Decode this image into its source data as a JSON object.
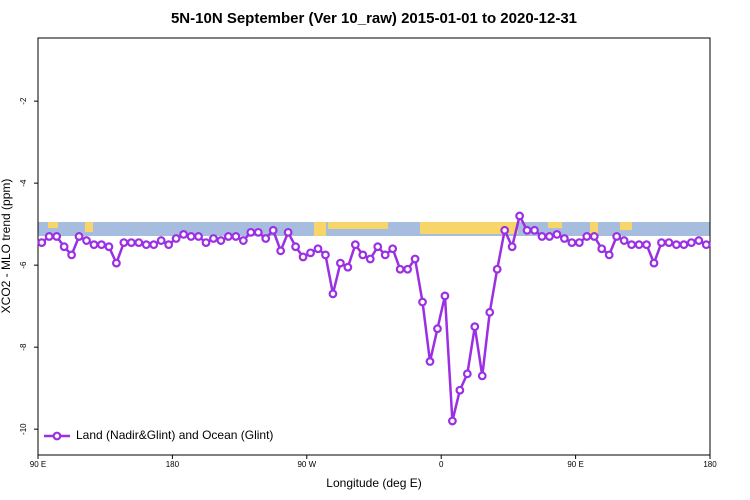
{
  "chart_data": {
    "type": "line",
    "title": "5N-10N September (Ver 10_raw)   2015-01-01 to 2020-12-31",
    "x_label": "Longitude (deg E)",
    "y_label": "XCO2 - MLO trend (ppm)",
    "x": [
      92.5,
      97.5,
      102.5,
      107.5,
      112.5,
      117.5,
      122.5,
      127.5,
      132.5,
      137.5,
      142.5,
      147.5,
      152.5,
      157.5,
      162.5,
      167.5,
      172.5,
      177.5,
      182.5,
      187.5,
      192.5,
      197.5,
      202.5,
      207.5,
      212.5,
      217.5,
      222.5,
      227.5,
      232.5,
      237.5,
      242.5,
      247.5,
      252.5,
      257.5,
      262.5,
      267.5,
      272.5,
      277.5,
      282.5,
      287.5,
      292.5,
      297.5,
      302.5,
      307.5,
      312.5,
      317.5,
      322.5,
      327.5,
      332.5,
      337.5,
      342.5,
      347.5,
      352.5,
      357.5,
      362.5,
      367.5,
      372.5,
      377.5,
      382.5,
      387.5,
      392.5,
      397.5,
      402.5,
      407.5,
      412.5,
      417.5,
      422.5,
      427.5,
      432.5,
      437.5,
      442.5,
      447.5,
      452.5,
      457.5,
      462.5,
      467.5,
      472.5,
      477.5,
      482.5,
      487.5,
      492.5,
      497.5,
      502.5,
      507.5,
      512.5,
      517.5,
      522.5,
      527.5,
      532.5,
      537.5
    ],
    "series": [
      {
        "name": "Land (Nadir&Glint) and Ocean (Glint)",
        "color": "#9b2fe3",
        "values": [
          -5.45,
          -5.3,
          -5.3,
          -5.55,
          -5.75,
          -5.3,
          -5.4,
          -5.5,
          -5.5,
          -5.55,
          -5.95,
          -5.45,
          -5.45,
          -5.45,
          -5.5,
          -5.5,
          -5.4,
          -5.5,
          -5.35,
          -5.25,
          -5.3,
          -5.3,
          -5.45,
          -5.35,
          -5.4,
          -5.3,
          -5.3,
          -5.4,
          -5.2,
          -5.2,
          -5.35,
          -5.15,
          -5.65,
          -5.2,
          -5.55,
          -5.8,
          -5.7,
          -5.6,
          -5.75,
          -6.7,
          -5.95,
          -6.05,
          -5.5,
          -5.75,
          -5.85,
          -5.55,
          -5.75,
          -5.6,
          -6.1,
          -6.1,
          -5.85,
          -6.9,
          -8.35,
          -7.55,
          -6.75,
          -9.8,
          -9.05,
          -8.65,
          -7.5,
          -8.7,
          -7.15,
          -6.1,
          -5.15,
          -5.55,
          -4.8,
          -5.15,
          -5.15,
          -5.3,
          -5.3,
          -5.25,
          -5.35,
          -5.45,
          -5.45,
          -5.3,
          -5.3,
          -5.6,
          -5.75,
          -5.3,
          -5.4,
          -5.5,
          -5.5,
          -5.5,
          -5.95,
          -5.45,
          -5.45,
          -5.5,
          -5.5,
          -5.45,
          -5.4,
          -5.5
        ]
      }
    ],
    "xlim": [
      90,
      540
    ],
    "xticks": [
      {
        "value": 90,
        "label": "90 E"
      },
      180,
      {
        "value": 270,
        "label": "90 W"
      },
      {
        "value": 360,
        "label": "0"
      },
      {
        "value": 450,
        "label": "90 E"
      },
      {
        "value": 540,
        "label": "180"
      }
    ],
    "ylim": [
      -10.63,
      -0.46
    ],
    "yticks": [
      -10,
      -8,
      -6,
      -4,
      -2
    ],
    "legend": "bottom-left"
  }
}
